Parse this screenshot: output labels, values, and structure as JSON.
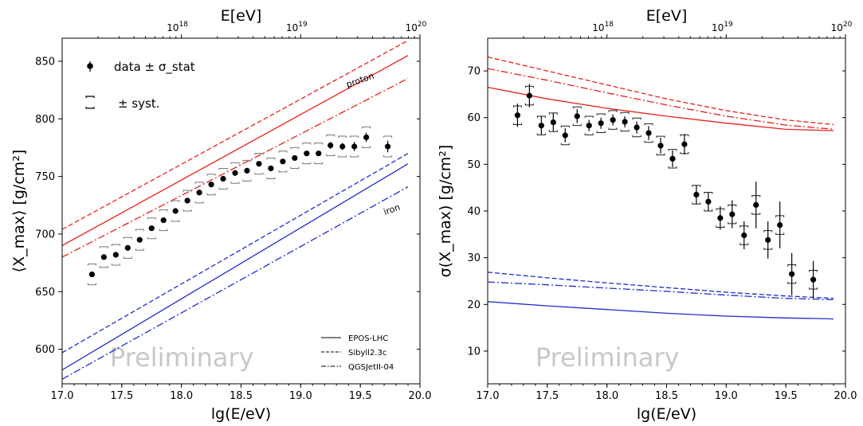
{
  "chart_data": [
    {
      "type": "scatter",
      "title": "",
      "xlabel": "lg(E/eV)",
      "ylabel": "⟨X_max⟩ [g/cm²]",
      "top_axis_label": "E[eV]",
      "top_ticks": [
        {
          "lgE": 18,
          "label": "10^18"
        },
        {
          "lgE": 19,
          "label": "10^19"
        },
        {
          "lgE": 20,
          "label": "10^20"
        }
      ],
      "xlim": [
        17.0,
        20.0
      ],
      "ylim": [
        570,
        870
      ],
      "xticks": [
        17.0,
        17.5,
        18.0,
        18.5,
        19.0,
        19.5,
        20.0
      ],
      "yticks": [
        600,
        650,
        700,
        750,
        800,
        850
      ],
      "watermark": "Preliminary",
      "legend_markers": {
        "data": "data ± σ_stat",
        "syst": "± syst."
      },
      "legend_lines": [
        {
          "style": "solid",
          "label": "EPOS-LHC"
        },
        {
          "style": "dashed",
          "label": "Sibyll2.3c"
        },
        {
          "style": "dashdot",
          "label": "QGSJetII-04"
        }
      ],
      "annotations": [
        {
          "text": "proton"
        },
        {
          "text": "iron"
        }
      ],
      "models": [
        {
          "name": "EPOS-LHC proton",
          "color": "#e8201c",
          "style": "solid",
          "x": [
            17.0,
            19.9
          ],
          "y": [
            690,
            855
          ]
        },
        {
          "name": "Sibyll2.3c proton",
          "color": "#e8201c",
          "style": "dashed",
          "x": [
            17.0,
            19.9
          ],
          "y": [
            704,
            868
          ]
        },
        {
          "name": "QGSJetII-04 proton",
          "color": "#e8201c",
          "style": "dashdot",
          "x": [
            17.0,
            19.9
          ],
          "y": [
            680,
            835
          ]
        },
        {
          "name": "EPOS-LHC iron",
          "color": "#1f2bcc",
          "style": "solid",
          "x": [
            17.0,
            19.9
          ],
          "y": [
            582,
            761
          ]
        },
        {
          "name": "Sibyll2.3c iron",
          "color": "#1f2bcc",
          "style": "dashed",
          "x": [
            17.0,
            19.9
          ],
          "y": [
            597,
            770
          ]
        },
        {
          "name": "QGSJetII-04 iron",
          "color": "#1f2bcc",
          "style": "dashdot",
          "x": [
            17.0,
            19.9
          ],
          "y": [
            574,
            741
          ]
        }
      ],
      "data": [
        {
          "x": 17.25,
          "y": 665,
          "stat": 2,
          "syst_lo": 9,
          "syst_hi": 9
        },
        {
          "x": 17.35,
          "y": 680,
          "stat": 2,
          "syst_lo": 9,
          "syst_hi": 9
        },
        {
          "x": 17.45,
          "y": 682,
          "stat": 2,
          "syst_lo": 9,
          "syst_hi": 9
        },
        {
          "x": 17.55,
          "y": 688,
          "stat": 2,
          "syst_lo": 9,
          "syst_hi": 9
        },
        {
          "x": 17.65,
          "y": 695,
          "stat": 2,
          "syst_lo": 9,
          "syst_hi": 9
        },
        {
          "x": 17.75,
          "y": 705,
          "stat": 2,
          "syst_lo": 9,
          "syst_hi": 9
        },
        {
          "x": 17.85,
          "y": 712,
          "stat": 2,
          "syst_lo": 9,
          "syst_hi": 9
        },
        {
          "x": 17.95,
          "y": 720,
          "stat": 2,
          "syst_lo": 9,
          "syst_hi": 9
        },
        {
          "x": 18.05,
          "y": 729,
          "stat": 2,
          "syst_lo": 9,
          "syst_hi": 9
        },
        {
          "x": 18.15,
          "y": 736,
          "stat": 2,
          "syst_lo": 9,
          "syst_hi": 9
        },
        {
          "x": 18.25,
          "y": 743,
          "stat": 2,
          "syst_lo": 9,
          "syst_hi": 9
        },
        {
          "x": 18.35,
          "y": 748,
          "stat": 2,
          "syst_lo": 9,
          "syst_hi": 9
        },
        {
          "x": 18.45,
          "y": 753,
          "stat": 2,
          "syst_lo": 9,
          "syst_hi": 9
        },
        {
          "x": 18.55,
          "y": 755,
          "stat": 2,
          "syst_lo": 9,
          "syst_hi": 9
        },
        {
          "x": 18.65,
          "y": 761,
          "stat": 2,
          "syst_lo": 9,
          "syst_hi": 9
        },
        {
          "x": 18.75,
          "y": 757,
          "stat": 2,
          "syst_lo": 9,
          "syst_hi": 9
        },
        {
          "x": 18.85,
          "y": 763,
          "stat": 2,
          "syst_lo": 9,
          "syst_hi": 9
        },
        {
          "x": 18.95,
          "y": 766,
          "stat": 2,
          "syst_lo": 9,
          "syst_hi": 9
        },
        {
          "x": 19.05,
          "y": 770,
          "stat": 2,
          "syst_lo": 9,
          "syst_hi": 9
        },
        {
          "x": 19.15,
          "y": 770,
          "stat": 2,
          "syst_lo": 9,
          "syst_hi": 9
        },
        {
          "x": 19.25,
          "y": 777,
          "stat": 3,
          "syst_lo": 9,
          "syst_hi": 9
        },
        {
          "x": 19.35,
          "y": 776,
          "stat": 3,
          "syst_lo": 9,
          "syst_hi": 9
        },
        {
          "x": 19.45,
          "y": 776,
          "stat": 4,
          "syst_lo": 9,
          "syst_hi": 9
        },
        {
          "x": 19.55,
          "y": 784,
          "stat": 4,
          "syst_lo": 9,
          "syst_hi": 9
        },
        {
          "x": 19.73,
          "y": 776,
          "stat": 5,
          "syst_lo": 9,
          "syst_hi": 9
        }
      ]
    },
    {
      "type": "scatter",
      "title": "",
      "xlabel": "lg(E/eV)",
      "ylabel": "σ(X_max) [g/cm²]",
      "top_axis_label": "E[eV]",
      "top_ticks": [
        {
          "lgE": 18,
          "label": "10^18"
        },
        {
          "lgE": 19,
          "label": "10^19"
        },
        {
          "lgE": 20,
          "label": "10^20"
        }
      ],
      "xlim": [
        17.0,
        20.0
      ],
      "ylim": [
        3,
        77
      ],
      "xticks": [
        17.0,
        17.5,
        18.0,
        18.5,
        19.0,
        19.5,
        20.0
      ],
      "yticks": [
        10,
        20,
        30,
        40,
        50,
        60,
        70
      ],
      "watermark": "Preliminary",
      "models": [
        {
          "name": "EPOS-LHC proton",
          "color": "#e8201c",
          "style": "solid",
          "x": [
            17.0,
            17.5,
            18.0,
            18.5,
            19.0,
            19.5,
            19.9
          ],
          "y": [
            66.5,
            64.0,
            62.0,
            60.3,
            58.8,
            57.5,
            57.2
          ]
        },
        {
          "name": "Sibyll2.3c proton",
          "color": "#e8201c",
          "style": "dashed",
          "x": [
            17.0,
            17.5,
            18.0,
            18.5,
            19.0,
            19.5,
            19.9
          ],
          "y": [
            73.0,
            70.0,
            67.0,
            64.0,
            61.5,
            59.5,
            58.5
          ]
        },
        {
          "name": "QGSJetII-04 proton",
          "color": "#e8201c",
          "style": "dashdot",
          "x": [
            17.0,
            17.5,
            18.0,
            18.5,
            19.0,
            19.5,
            19.9
          ],
          "y": [
            70.5,
            68.0,
            65.3,
            62.7,
            60.3,
            58.4,
            57.5
          ]
        },
        {
          "name": "EPOS-LHC iron",
          "color": "#1f2bcc",
          "style": "solid",
          "x": [
            17.0,
            17.5,
            18.0,
            18.5,
            19.0,
            19.5,
            19.9
          ],
          "y": [
            20.6,
            19.7,
            18.9,
            18.1,
            17.5,
            17.1,
            16.9
          ]
        },
        {
          "name": "Sibyll2.3c iron",
          "color": "#1f2bcc",
          "style": "dashed",
          "x": [
            17.0,
            17.5,
            18.0,
            18.5,
            19.0,
            19.5,
            19.9
          ],
          "y": [
            26.9,
            25.7,
            24.6,
            23.6,
            22.6,
            21.8,
            21.3
          ]
        },
        {
          "name": "QGSJetII-04 iron",
          "color": "#1f2bcc",
          "style": "dashdot",
          "x": [
            17.0,
            17.5,
            18.0,
            18.5,
            19.0,
            19.5,
            19.9
          ],
          "y": [
            24.8,
            24.2,
            23.5,
            22.8,
            22.0,
            21.3,
            21.0
          ]
        }
      ],
      "data": [
        {
          "x": 17.25,
          "y": 60.5,
          "stat": 2.5,
          "syst_lo": 2.0,
          "syst_hi": 2.0
        },
        {
          "x": 17.35,
          "y": 64.7,
          "stat": 2.5,
          "syst_lo": 2.0,
          "syst_hi": 2.0
        },
        {
          "x": 17.45,
          "y": 58.3,
          "stat": 2.0,
          "syst_lo": 2.0,
          "syst_hi": 2.0
        },
        {
          "x": 17.55,
          "y": 59.0,
          "stat": 2.0,
          "syst_lo": 2.0,
          "syst_hi": 2.0
        },
        {
          "x": 17.65,
          "y": 56.2,
          "stat": 1.5,
          "syst_lo": 2.0,
          "syst_hi": 2.0
        },
        {
          "x": 17.75,
          "y": 60.3,
          "stat": 1.5,
          "syst_lo": 2.0,
          "syst_hi": 2.0
        },
        {
          "x": 17.85,
          "y": 58.3,
          "stat": 1.2,
          "syst_lo": 2.0,
          "syst_hi": 2.0
        },
        {
          "x": 17.95,
          "y": 58.8,
          "stat": 1.2,
          "syst_lo": 2.0,
          "syst_hi": 2.0
        },
        {
          "x": 18.05,
          "y": 59.5,
          "stat": 1.2,
          "syst_lo": 2.0,
          "syst_hi": 2.0
        },
        {
          "x": 18.15,
          "y": 59.1,
          "stat": 1.2,
          "syst_lo": 2.0,
          "syst_hi": 2.0
        },
        {
          "x": 18.25,
          "y": 57.9,
          "stat": 1.3,
          "syst_lo": 2.0,
          "syst_hi": 2.0
        },
        {
          "x": 18.35,
          "y": 56.7,
          "stat": 1.5,
          "syst_lo": 2.0,
          "syst_hi": 2.0
        },
        {
          "x": 18.45,
          "y": 54.0,
          "stat": 1.7,
          "syst_lo": 2.0,
          "syst_hi": 2.0
        },
        {
          "x": 18.55,
          "y": 51.2,
          "stat": 1.8,
          "syst_lo": 2.0,
          "syst_hi": 2.0
        },
        {
          "x": 18.65,
          "y": 54.3,
          "stat": 2.2,
          "syst_lo": 2.0,
          "syst_hi": 2.0
        },
        {
          "x": 18.75,
          "y": 43.5,
          "stat": 2.0,
          "syst_lo": 2.0,
          "syst_hi": 2.0
        },
        {
          "x": 18.85,
          "y": 42.0,
          "stat": 2.0,
          "syst_lo": 2.0,
          "syst_hi": 2.0
        },
        {
          "x": 18.95,
          "y": 38.5,
          "stat": 2.5,
          "syst_lo": 2.0,
          "syst_hi": 2.0
        },
        {
          "x": 19.05,
          "y": 39.3,
          "stat": 3.0,
          "syst_lo": 2.0,
          "syst_hi": 2.0
        },
        {
          "x": 19.15,
          "y": 34.8,
          "stat": 3.0,
          "syst_lo": 2.0,
          "syst_hi": 2.0
        },
        {
          "x": 19.25,
          "y": 41.3,
          "stat": 5.0,
          "syst_lo": 2.0,
          "syst_hi": 2.0
        },
        {
          "x": 19.35,
          "y": 33.8,
          "stat": 4.0,
          "syst_lo": 2.0,
          "syst_hi": 2.0
        },
        {
          "x": 19.45,
          "y": 37.0,
          "stat": 5.0,
          "syst_lo": 2.0,
          "syst_hi": 2.0
        },
        {
          "x": 19.55,
          "y": 26.5,
          "stat": 4.5,
          "syst_lo": 2.0,
          "syst_hi": 2.0
        },
        {
          "x": 19.73,
          "y": 25.3,
          "stat": 4.0,
          "syst_lo": 2.0,
          "syst_hi": 2.0
        }
      ]
    }
  ]
}
